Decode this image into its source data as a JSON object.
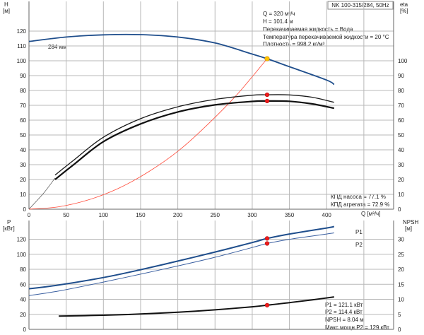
{
  "chart_data": [
    {
      "type": "line",
      "title_box": "NK 100-315/284, 50Hz",
      "left_axis_label": "H",
      "left_axis_unit": "[м]",
      "right_axis_label": "eta",
      "right_axis_unit": "[%]",
      "xlabel": "Q [м³/ч]",
      "xlim": [
        0,
        490
      ],
      "x_ticks": [
        "0",
        "50",
        "100",
        "150",
        "200",
        "250",
        "300",
        "350",
        "400"
      ],
      "ylim_left": [
        0,
        140
      ],
      "ylim_right": [
        0,
        140
      ],
      "y_ticks_left": [
        "0",
        "10",
        "20",
        "30",
        "40",
        "50",
        "60",
        "70",
        "80",
        "90",
        "100",
        "110",
        "120"
      ],
      "y_ticks_right": [
        "0",
        "10",
        "20",
        "30",
        "40",
        "50",
        "60",
        "70",
        "80",
        "90",
        "100"
      ],
      "grid": true,
      "curve_label": "284 мм",
      "info_lines": [
        "Q = 320 м³/ч",
        "H = 101.4 м",
        "Перекачиваемая жидкость = Вода",
        "Температура перекачиваемой жидкости = 20 °C",
        "Плотность = 998.2 кг/м³"
      ],
      "efficiency_lines": [
        "КПД насоса = 77.1 %",
        "КПД агрегата = 72.9 %"
      ],
      "series": [
        {
          "key": "H",
          "axis": "left",
          "color": "#1f4e8c",
          "points": [
            [
              0,
              113
            ],
            [
              50,
              116
            ],
            [
              100,
              117.5
            ],
            [
              150,
              117.6
            ],
            [
              200,
              116
            ],
            [
              250,
              112
            ],
            [
              300,
              104.5
            ],
            [
              320,
              101.4
            ],
            [
              350,
              96
            ],
            [
              400,
              87
            ],
            [
              410,
              84
            ]
          ]
        },
        {
          "key": "system",
          "axis": "left",
          "color": "#ff4b3a",
          "points": [
            [
              0,
              0
            ],
            [
              40,
              1.6
            ],
            [
              80,
              6.3
            ],
            [
              120,
              14
            ],
            [
              160,
              25
            ],
            [
              200,
              39
            ],
            [
              240,
              57
            ],
            [
              280,
              77.5
            ],
            [
              320,
              101.4
            ]
          ]
        },
        {
          "key": "eta_pump",
          "axis": "right",
          "color": "#1a1a1a",
          "points": [
            [
              35,
              23
            ],
            [
              60,
              33
            ],
            [
              100,
              48.5
            ],
            [
              150,
              61
            ],
            [
              200,
              69
            ],
            [
              250,
              74
            ],
            [
              300,
              76.8
            ],
            [
              320,
              77.1
            ],
            [
              350,
              77
            ],
            [
              380,
              75.5
            ],
            [
              410,
              72
            ]
          ]
        },
        {
          "key": "eta_unit",
          "axis": "right",
          "color": "#111111",
          "points": [
            [
              35,
              20
            ],
            [
              60,
              30
            ],
            [
              100,
              45.5
            ],
            [
              150,
              57.5
            ],
            [
              200,
              65.5
            ],
            [
              250,
              70.3
            ],
            [
              300,
              72.6
            ],
            [
              320,
              72.9
            ],
            [
              350,
              72.7
            ],
            [
              380,
              71
            ],
            [
              410,
              68
            ]
          ]
        },
        {
          "key": "eta_thin",
          "axis": "right",
          "color": "#555555",
          "points": [
            [
              0,
              0
            ],
            [
              20,
              11
            ],
            [
              35,
              21
            ]
          ]
        }
      ],
      "markers": [
        {
          "series": "H",
          "x": 320,
          "y": 101.4,
          "color": "#ffc400"
        },
        {
          "series": "eta_pump",
          "x": 320,
          "y": 77.1,
          "color": "#ee1c1c"
        },
        {
          "series": "eta_unit",
          "x": 320,
          "y": 72.9,
          "color": "#ee1c1c"
        }
      ]
    },
    {
      "type": "line",
      "left_axis_label": "P",
      "left_axis_unit": "[кВт]",
      "right_axis_label": "NPSH",
      "right_axis_unit": "[м]",
      "xlim": [
        0,
        490
      ],
      "ylim_left": [
        0,
        145
      ],
      "ylim_right": [
        0,
        36.25
      ],
      "y_ticks_left": [
        "0",
        "20",
        "40",
        "60",
        "80",
        "100",
        "120"
      ],
      "y_ticks_right": [
        "0",
        "5",
        "10",
        "15",
        "20",
        "25",
        "30"
      ],
      "grid": true,
      "series_labels": {
        "P1": "P1",
        "P2": "P2"
      },
      "info_lines": [
        "P1 = 121.1 кВт",
        "P2 = 114.4 кВт",
        "NPSH = 8.04 м",
        "Макс.мощн.P2 = 129 кВт"
      ],
      "series": [
        {
          "key": "P1",
          "axis": "left",
          "color": "#1f4e8c",
          "points": [
            [
              0,
              54
            ],
            [
              40,
              59
            ],
            [
              100,
              69
            ],
            [
              150,
              79.5
            ],
            [
              200,
              91
            ],
            [
              250,
              103
            ],
            [
              300,
              115.6
            ],
            [
              320,
              121.1
            ],
            [
              350,
              127
            ],
            [
              400,
              135
            ],
            [
              410,
              137
            ]
          ]
        },
        {
          "key": "P2",
          "axis": "left",
          "color": "#3a5fa0",
          "points": [
            [
              0,
              45
            ],
            [
              40,
              51
            ],
            [
              100,
              63
            ],
            [
              150,
              73.5
            ],
            [
              200,
              84.5
            ],
            [
              250,
              96
            ],
            [
              300,
              109
            ],
            [
              320,
              114.4
            ],
            [
              350,
              120
            ],
            [
              400,
              127
            ],
            [
              410,
              128.5
            ]
          ]
        },
        {
          "key": "NPSH",
          "axis": "right",
          "color": "#111111",
          "points": [
            [
              40,
              4.4
            ],
            [
              100,
              4.7
            ],
            [
              150,
              5.1
            ],
            [
              200,
              5.7
            ],
            [
              250,
              6.5
            ],
            [
              300,
              7.5
            ],
            [
              320,
              8.04
            ],
            [
              350,
              8.9
            ],
            [
              380,
              9.8
            ],
            [
              410,
              10.8
            ]
          ]
        }
      ],
      "markers": [
        {
          "series": "P1",
          "x": 320,
          "y": 121.1,
          "color": "#ee1c1c"
        },
        {
          "series": "P2",
          "x": 320,
          "y": 114.4,
          "color": "#ee1c1c"
        },
        {
          "series": "NPSH",
          "x": 320,
          "y": 8.04,
          "color": "#ee1c1c"
        }
      ]
    }
  ]
}
